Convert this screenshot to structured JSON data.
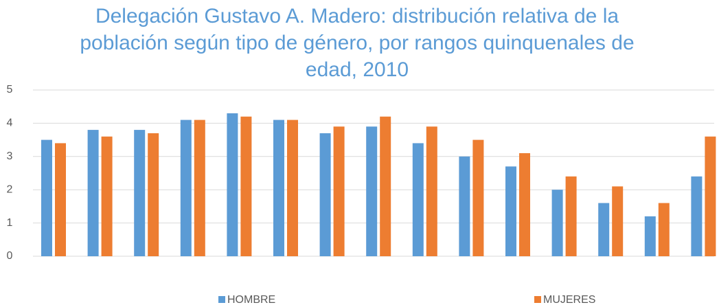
{
  "chart_data": {
    "type": "bar",
    "title": "Delegación Gustavo A. Madero: distribución relativa de la población según tipo de género, por rangos quinquenales de edad, 2010",
    "categories": [
      null,
      null,
      null,
      null,
      null,
      null,
      null,
      null,
      null,
      null,
      null,
      null,
      null,
      null,
      null
    ],
    "series": [
      {
        "name": "HOMBRE",
        "color": "#5b9bd5",
        "values": [
          3.5,
          3.8,
          3.8,
          4.1,
          4.3,
          4.1,
          3.7,
          3.9,
          3.4,
          3.0,
          2.7,
          2.0,
          1.6,
          1.2,
          2.4
        ]
      },
      {
        "name": "MUJERES",
        "color": "#ed7d31",
        "values": [
          3.4,
          3.6,
          3.7,
          4.1,
          4.2,
          4.1,
          3.9,
          4.2,
          3.9,
          3.5,
          3.1,
          2.4,
          2.1,
          1.6,
          3.6
        ]
      }
    ],
    "ylim": [
      0,
      5
    ],
    "yticks": [
      0,
      1,
      2,
      3,
      4,
      5
    ],
    "grid": true,
    "legend": "bottom"
  }
}
